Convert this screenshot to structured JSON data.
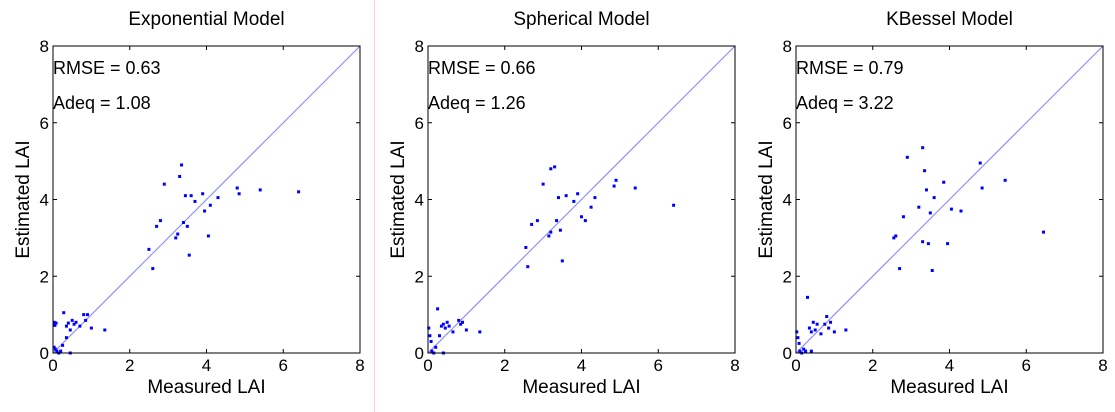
{
  "figure": {
    "accent_color": "#0000ff",
    "line_color": "#8080ff",
    "divider_color": "#f3d6d6"
  },
  "chart_data": [
    {
      "type": "scatter",
      "title": "Exponential Model",
      "xlabel": "Measured LAI",
      "ylabel": "Estimated LAI",
      "xlim": [
        0,
        8
      ],
      "ylim": [
        0,
        8
      ],
      "xticks": [
        "0",
        "2",
        "4",
        "6",
        "8"
      ],
      "yticks": [
        "0",
        "2",
        "4",
        "6",
        "8"
      ],
      "reference_line": "1:1",
      "annotations": [
        "RMSE = 0.63",
        "Adeq = 1.08"
      ],
      "points": [
        [
          0.03,
          0.8
        ],
        [
          0.05,
          0.72
        ],
        [
          0.08,
          0.78
        ],
        [
          0.03,
          0.15
        ],
        [
          0.06,
          0.1
        ],
        [
          0.1,
          0.05
        ],
        [
          0.2,
          0.05
        ],
        [
          0.28,
          1.05
        ],
        [
          0.35,
          0.7
        ],
        [
          0.4,
          0.78
        ],
        [
          0.45,
          0.6
        ],
        [
          0.5,
          0.85
        ],
        [
          0.55,
          0.75
        ],
        [
          0.6,
          0.8
        ],
        [
          0.7,
          0.7
        ],
        [
          0.8,
          1.0
        ],
        [
          0.85,
          0.85
        ],
        [
          0.9,
          1.0
        ],
        [
          1.0,
          0.65
        ],
        [
          1.35,
          0.6
        ],
        [
          0.35,
          0.4
        ],
        [
          0.25,
          0.2
        ],
        [
          0.15,
          0.0
        ],
        [
          0.45,
          0.0
        ],
        [
          2.5,
          2.7
        ],
        [
          2.6,
          2.2
        ],
        [
          2.7,
          3.3
        ],
        [
          2.8,
          3.45
        ],
        [
          2.9,
          4.4
        ],
        [
          3.2,
          3.0
        ],
        [
          3.3,
          4.6
        ],
        [
          3.35,
          4.9
        ],
        [
          3.4,
          3.4
        ],
        [
          3.45,
          4.1
        ],
        [
          3.5,
          3.3
        ],
        [
          3.55,
          2.55
        ],
        [
          3.6,
          4.1
        ],
        [
          3.7,
          3.95
        ],
        [
          3.9,
          4.15
        ],
        [
          3.95,
          3.7
        ],
        [
          4.05,
          3.05
        ],
        [
          4.1,
          3.85
        ],
        [
          4.3,
          4.05
        ],
        [
          4.8,
          4.3
        ],
        [
          4.85,
          4.15
        ],
        [
          5.4,
          4.25
        ],
        [
          6.4,
          4.2
        ],
        [
          3.25,
          3.1
        ]
      ]
    },
    {
      "type": "scatter",
      "title": "Spherical Model",
      "xlabel": "Measured LAI",
      "ylabel": "Estimated LAI",
      "xlim": [
        0,
        8
      ],
      "ylim": [
        0,
        8
      ],
      "xticks": [
        "0",
        "2",
        "4",
        "6",
        "8"
      ],
      "yticks": [
        "0",
        "2",
        "4",
        "6",
        "8"
      ],
      "reference_line": "1:1",
      "annotations": [
        "RMSE = 0.66",
        "Adeq = 1.26"
      ],
      "points": [
        [
          0.02,
          0.65
        ],
        [
          0.05,
          0.45
        ],
        [
          0.08,
          0.3
        ],
        [
          0.1,
          0.05
        ],
        [
          0.2,
          0.15
        ],
        [
          0.25,
          1.15
        ],
        [
          0.3,
          0.45
        ],
        [
          0.35,
          0.7
        ],
        [
          0.4,
          0.75
        ],
        [
          0.45,
          0.65
        ],
        [
          0.5,
          0.8
        ],
        [
          0.55,
          0.7
        ],
        [
          0.65,
          0.55
        ],
        [
          0.8,
          0.85
        ],
        [
          0.85,
          0.75
        ],
        [
          0.9,
          0.8
        ],
        [
          1.0,
          0.6
        ],
        [
          1.35,
          0.55
        ],
        [
          0.15,
          0.0
        ],
        [
          0.4,
          0.0
        ],
        [
          2.55,
          2.75
        ],
        [
          2.6,
          2.25
        ],
        [
          2.7,
          3.35
        ],
        [
          2.85,
          3.45
        ],
        [
          3.0,
          4.4
        ],
        [
          3.15,
          3.05
        ],
        [
          3.2,
          4.8
        ],
        [
          3.3,
          4.85
        ],
        [
          3.35,
          3.45
        ],
        [
          3.4,
          4.05
        ],
        [
          3.45,
          3.2
        ],
        [
          3.5,
          2.4
        ],
        [
          3.6,
          4.1
        ],
        [
          3.8,
          3.95
        ],
        [
          3.9,
          4.15
        ],
        [
          4.0,
          3.55
        ],
        [
          4.1,
          3.45
        ],
        [
          4.25,
          3.8
        ],
        [
          4.35,
          4.05
        ],
        [
          4.85,
          4.35
        ],
        [
          4.9,
          4.5
        ],
        [
          5.4,
          4.3
        ],
        [
          6.4,
          3.85
        ],
        [
          3.2,
          3.15
        ]
      ]
    },
    {
      "type": "scatter",
      "title": "KBessel Model",
      "xlabel": "Measured LAI",
      "ylabel": "Estimated LAI",
      "xlim": [
        0,
        8
      ],
      "ylim": [
        0,
        8
      ],
      "xticks": [
        "0",
        "2",
        "4",
        "6",
        "8"
      ],
      "yticks": [
        "0",
        "2",
        "4",
        "6",
        "8"
      ],
      "reference_line": "1:1",
      "annotations": [
        "RMSE = 0.79",
        "Adeq = 3.22"
      ],
      "points": [
        [
          0.02,
          0.55
        ],
        [
          0.05,
          0.4
        ],
        [
          0.08,
          0.25
        ],
        [
          0.1,
          0.05
        ],
        [
          0.2,
          0.1
        ],
        [
          0.25,
          0.05
        ],
        [
          0.3,
          1.45
        ],
        [
          0.35,
          0.65
        ],
        [
          0.4,
          0.55
        ],
        [
          0.45,
          0.8
        ],
        [
          0.5,
          0.6
        ],
        [
          0.55,
          0.75
        ],
        [
          0.65,
          0.5
        ],
        [
          0.75,
          0.75
        ],
        [
          0.8,
          0.95
        ],
        [
          0.85,
          0.65
        ],
        [
          0.9,
          0.8
        ],
        [
          1.0,
          0.55
        ],
        [
          1.3,
          0.6
        ],
        [
          0.15,
          0.0
        ],
        [
          0.4,
          0.05
        ],
        [
          2.55,
          3.0
        ],
        [
          2.6,
          3.05
        ],
        [
          2.7,
          2.2
        ],
        [
          2.8,
          3.55
        ],
        [
          2.9,
          5.1
        ],
        [
          3.2,
          3.8
        ],
        [
          3.3,
          5.35
        ],
        [
          3.35,
          4.75
        ],
        [
          3.4,
          4.25
        ],
        [
          3.45,
          2.85
        ],
        [
          3.5,
          3.65
        ],
        [
          3.55,
          2.15
        ],
        [
          3.6,
          4.05
        ],
        [
          3.85,
          4.45
        ],
        [
          3.95,
          2.85
        ],
        [
          4.05,
          3.75
        ],
        [
          4.3,
          3.7
        ],
        [
          4.8,
          4.95
        ],
        [
          4.85,
          4.3
        ],
        [
          5.45,
          4.5
        ],
        [
          6.45,
          3.15
        ],
        [
          3.3,
          2.9
        ]
      ]
    }
  ]
}
